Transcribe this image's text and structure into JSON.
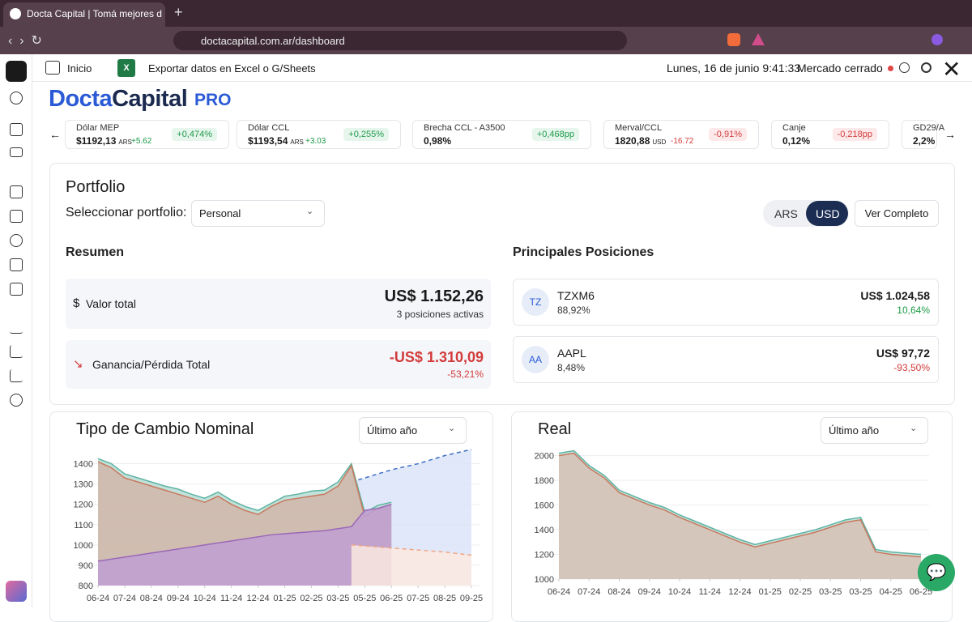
{
  "browser": {
    "tab_title": "Docta Capital | Tomá mejores d",
    "url": "doctacapital.com.ar/dashboard"
  },
  "toolbar": {
    "home": "Inicio",
    "export": "Exportar datos en Excel o G/Sheets",
    "datetime": "Lunes, 16 de junio 9:41:33",
    "market": "Mercado cerrado"
  },
  "logo": {
    "part1": "Docta",
    "part2": "Capital",
    "badge": "PRO"
  },
  "tickers": [
    {
      "name": "Dólar MEP",
      "value": "$1192,13",
      "unit": "ARS",
      "change": "+5.62",
      "pct": "+0,474%"
    },
    {
      "name": "Dólar CCL",
      "value": "$1193,54",
      "unit": "ARS",
      "change": "+3.03",
      "pct": "+0,255%"
    },
    {
      "name": "Brecha CCL - A3500",
      "value": "0,98%",
      "pct": "+0,468pp"
    },
    {
      "name": "Merval/CCL",
      "value": "1820,88",
      "unit": "USD",
      "change": "-16.72",
      "pct": "-0,91%"
    },
    {
      "name": "Canje",
      "value": "0,12%",
      "pct": "-0,218pp"
    },
    {
      "name": "GD29/A",
      "value": "2,2%"
    }
  ],
  "portfolio": {
    "title": "Portfolio",
    "select_label": "Seleccionar portfolio:",
    "selected": "Personal",
    "currencies": [
      "ARS",
      "USD"
    ],
    "button": "Ver Completo",
    "summary": {
      "title": "Resumen",
      "total_label": "Valor total",
      "total_value": "US$ 1.152,26",
      "total_sub": "3 posiciones activas",
      "pl_label": "Ganancia/Pérdida Total",
      "pl_value": "-US$ 1.310,09",
      "pl_pct": "-53,21%"
    },
    "positions": {
      "title": "Principales Posiciones",
      "items": [
        {
          "avatar": "TZ",
          "ticker": "TZXM6",
          "weight": "88,92%",
          "value": "US$ 1.024,58",
          "change": "10,64%"
        },
        {
          "avatar": "AA",
          "ticker": "AAPL",
          "weight": "8,48%",
          "value": "US$ 97,72",
          "change": "-93,50%"
        }
      ]
    }
  },
  "charts": [
    {
      "type": "area",
      "title": "Tipo de Cambio Nominal",
      "period": "Último año",
      "x": [
        0,
        0.5,
        1,
        1.5,
        2,
        2.5,
        3,
        3.5,
        4,
        4.5,
        5,
        5.5,
        6,
        6.5,
        7,
        7.5,
        8,
        8.5,
        9,
        9.5,
        10,
        10.5,
        11,
        11.5,
        12,
        12.5,
        13,
        13.5,
        14
      ],
      "xlim": [
        0,
        14
      ],
      "xticks": [
        {
          "value": 0,
          "label": "06-24"
        },
        {
          "value": 1,
          "label": "07-24"
        },
        {
          "value": 2,
          "label": "08-24"
        },
        {
          "value": 3,
          "label": "09-24"
        },
        {
          "value": 4,
          "label": "10-24"
        },
        {
          "value": 5,
          "label": "11-24"
        },
        {
          "value": 6,
          "label": "12-24"
        },
        {
          "value": 7,
          "label": "01-25"
        },
        {
          "value": 8,
          "label": "02-25"
        },
        {
          "value": 9,
          "label": "03-25"
        },
        {
          "value": 10,
          "label": "05-25"
        },
        {
          "value": 11,
          "label": "06-25"
        },
        {
          "value": 12,
          "label": "07-25"
        },
        {
          "value": 13,
          "label": "08-25"
        },
        {
          "value": 14,
          "label": "09-25"
        }
      ],
      "ylim": [
        800,
        1470
      ],
      "yticks": [
        800,
        900,
        1000,
        1100,
        1200,
        1300,
        1400
      ],
      "grid": true,
      "series": [
        {
          "color": "#3d6fc2",
          "fill": "#dbe4f8",
          "dashed": true,
          "values": [
            null,
            null,
            null,
            null,
            null,
            null,
            null,
            null,
            null,
            null,
            null,
            null,
            null,
            null,
            null,
            null,
            null,
            null,
            null,
            1310,
            1330,
            1350,
            1370,
            1385,
            1400,
            1420,
            1440,
            1455,
            1470
          ]
        },
        {
          "color": "#5fb3a3",
          "fill": "#b6ddd4",
          "values": [
            1425,
            1400,
            1350,
            1330,
            1310,
            1290,
            1275,
            1250,
            1230,
            1260,
            1220,
            1190,
            1170,
            1205,
            1240,
            1250,
            1265,
            1270,
            1310,
            1400,
            1160,
            1195,
            1210,
            null,
            null,
            null,
            null,
            null,
            null
          ]
        },
        {
          "color": "#c8785e",
          "fill": "#d2b6a9",
          "values": [
            1410,
            1380,
            1330,
            1310,
            1290,
            1270,
            1250,
            1230,
            1210,
            1240,
            1200,
            1170,
            1150,
            1190,
            1220,
            1230,
            1240,
            1250,
            1290,
            1390,
            1140,
            1180,
            1200,
            null,
            null,
            null,
            null,
            null,
            null
          ]
        },
        {
          "color": "#9a68b8",
          "fill": "#c09fd2",
          "values": [
            920,
            930,
            940,
            950,
            960,
            970,
            980,
            990,
            1000,
            1010,
            1020,
            1030,
            1040,
            1050,
            1055,
            1060,
            1065,
            1070,
            1080,
            1090,
            1170,
            1180,
            1200,
            null,
            null,
            null,
            null,
            null,
            null
          ]
        },
        {
          "color": "#f0a585",
          "fill": "#fbe9e0",
          "dashed": true,
          "values": [
            null,
            null,
            null,
            null,
            null,
            null,
            null,
            null,
            null,
            null,
            null,
            null,
            null,
            null,
            null,
            null,
            null,
            null,
            null,
            1000,
            995,
            990,
            985,
            980,
            975,
            970,
            965,
            957,
            950
          ]
        }
      ]
    },
    {
      "type": "area",
      "title": "Real",
      "period": "Último año",
      "x": [
        0,
        0.5,
        1,
        1.5,
        2,
        2.5,
        3,
        3.5,
        4,
        4.5,
        5,
        5.5,
        6,
        6.5,
        7,
        7.5,
        8,
        8.5,
        9,
        9.5,
        10,
        10.5,
        11,
        11.5,
        12
      ],
      "xlim": [
        0,
        12
      ],
      "xticks": [
        {
          "value": 0,
          "label": "06-24"
        },
        {
          "value": 1,
          "label": "07-24"
        },
        {
          "value": 2,
          "label": "08-24"
        },
        {
          "value": 3,
          "label": "09-24"
        },
        {
          "value": 4,
          "label": "10-24"
        },
        {
          "value": 5,
          "label": "11-24"
        },
        {
          "value": 6,
          "label": "12-24"
        },
        {
          "value": 7,
          "label": "01-25"
        },
        {
          "value": 8,
          "label": "02-25"
        },
        {
          "value": 9,
          "label": "03-25"
        },
        {
          "value": 10,
          "label": "03-25"
        },
        {
          "value": 11,
          "label": "04-25"
        },
        {
          "value": 12,
          "label": "06-25"
        }
      ],
      "ylim": [
        1000,
        2050
      ],
      "yticks": [
        1000,
        1200,
        1400,
        1600,
        1800,
        2000
      ],
      "grid": true,
      "series": [
        {
          "color": "#5fb3a3",
          "fill": "#b6ddd4",
          "values": [
            2020,
            2040,
            1920,
            1840,
            1720,
            1670,
            1620,
            1580,
            1520,
            1470,
            1420,
            1370,
            1320,
            1280,
            1310,
            1340,
            1370,
            1400,
            1440,
            1480,
            1500,
            1240,
            1220,
            1210,
            1200
          ]
        },
        {
          "color": "#c8785e",
          "fill": "#d7c1b5",
          "values": [
            2000,
            2020,
            1900,
            1820,
            1700,
            1650,
            1600,
            1560,
            1500,
            1450,
            1400,
            1350,
            1300,
            1260,
            1290,
            1320,
            1350,
            1380,
            1420,
            1460,
            1480,
            1220,
            1200,
            1190,
            1180
          ]
        }
      ]
    }
  ]
}
